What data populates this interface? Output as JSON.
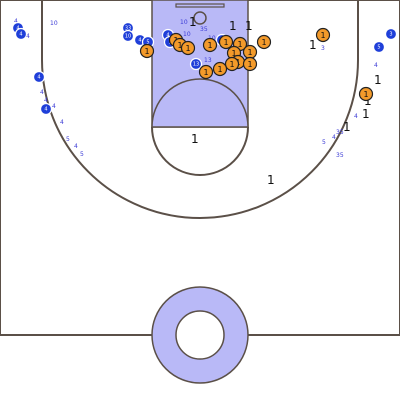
{
  "court": {
    "paint_color": "#b9b9f7",
    "line_color": "#5b5048"
  },
  "offense_players": [
    {
      "label": "4"
    },
    {
      "label": "4"
    },
    {
      "label": "33"
    },
    {
      "label": "10"
    },
    {
      "label": "4"
    },
    {
      "label": "5"
    },
    {
      "label": "4"
    },
    {
      "label": "1"
    },
    {
      "label": "1"
    },
    {
      "label": "4"
    },
    {
      "label": "4"
    },
    {
      "label": "4"
    },
    {
      "label": "5"
    },
    {
      "label": "3"
    },
    {
      "label": "13"
    }
  ],
  "defense_players": [
    {
      "label": "1"
    },
    {
      "label": "1"
    },
    {
      "label": "1"
    },
    {
      "label": "1"
    },
    {
      "label": "1"
    },
    {
      "label": "1"
    },
    {
      "label": "1"
    },
    {
      "label": "1"
    },
    {
      "label": "1"
    },
    {
      "label": "1"
    },
    {
      "label": "1"
    },
    {
      "label": "1"
    },
    {
      "label": "1"
    },
    {
      "label": "1"
    },
    {
      "label": "1"
    },
    {
      "label": "1"
    },
    {
      "label": "1"
    }
  ],
  "blue_notes": [
    "4",
    "4",
    "10",
    "4",
    "4",
    "4",
    "4",
    "5",
    "4",
    "5",
    "4",
    "5",
    "4",
    "35",
    "35",
    "10",
    "10",
    "6",
    "4",
    "3",
    "35",
    "13",
    "10",
    "4"
  ],
  "black_notes": [
    "1",
    "1",
    "1",
    "1",
    "1",
    "1",
    "1",
    "1",
    "1",
    "1"
  ]
}
